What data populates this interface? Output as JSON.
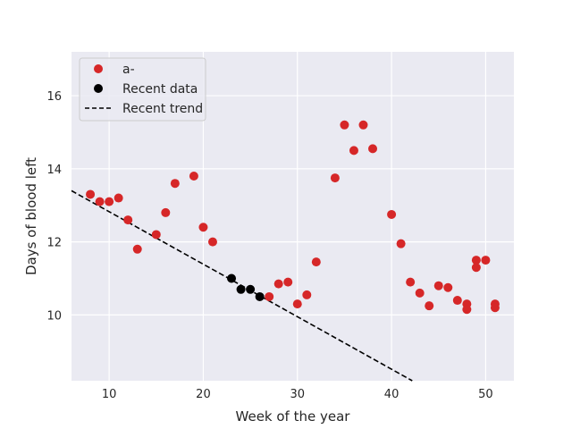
{
  "chart_data": {
    "type": "scatter",
    "xlabel": "Week of the year",
    "ylabel": "Days of blood left",
    "xlim": [
      6,
      53
    ],
    "ylim": [
      8.2,
      17.2
    ],
    "xticks": [
      10,
      20,
      30,
      40,
      50
    ],
    "yticks": [
      10,
      12,
      14,
      16
    ],
    "grid": true,
    "legend_position": "top-left",
    "series": [
      {
        "name": "a-",
        "kind": "scatter",
        "color": "#d62728",
        "x": [
          8,
          9,
          10,
          11,
          12,
          13,
          15,
          16,
          17,
          19,
          20,
          21,
          27,
          28,
          29,
          30,
          31,
          32,
          34,
          35,
          36,
          37,
          38,
          40,
          41,
          42,
          43,
          44,
          45,
          46,
          47,
          48,
          48,
          49,
          49,
          50,
          51,
          51
        ],
        "y": [
          13.3,
          13.1,
          13.1,
          13.2,
          12.6,
          11.8,
          12.2,
          12.8,
          13.6,
          13.8,
          12.4,
          12.0,
          10.5,
          10.85,
          10.9,
          10.3,
          10.55,
          11.45,
          13.75,
          15.2,
          14.5,
          15.2,
          14.55,
          12.75,
          11.95,
          10.9,
          10.6,
          10.25,
          10.8,
          10.75,
          10.4,
          10.3,
          10.15,
          11.3,
          11.5,
          11.5,
          10.3,
          10.2
        ]
      },
      {
        "name": "Recent data",
        "kind": "scatter",
        "color": "#000000",
        "x": [
          23,
          24,
          25,
          26
        ],
        "y": [
          11.0,
          10.7,
          10.7,
          10.5
        ]
      },
      {
        "name": "Recent trend",
        "kind": "line",
        "style": "dashed",
        "color": "#000000",
        "x": [
          6,
          42.2
        ],
        "y": [
          13.4,
          8.2
        ]
      }
    ]
  }
}
